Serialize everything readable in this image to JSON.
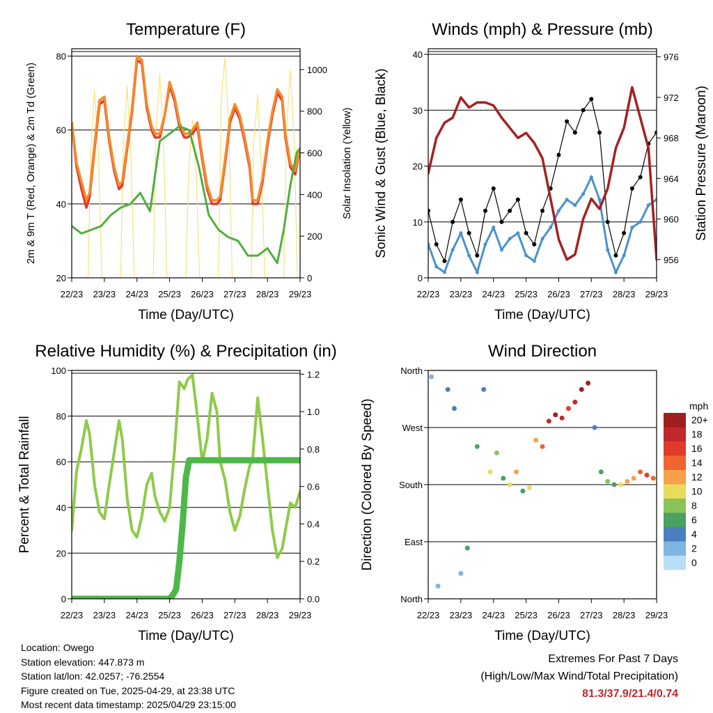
{
  "colors": {
    "t2m": "#e03a2a",
    "t9m": "#f58a2a",
    "td": "#4fae3f",
    "solar": "#f9e27a",
    "gust": "#000000",
    "wind": "#4a90d0",
    "pressure": "#a52020",
    "rh": "#8fca4a",
    "precip": "#4cb848",
    "extremes": "#c0282d"
  },
  "x_tick_labels": [
    "22/23",
    "23/23",
    "24/23",
    "25/23",
    "26/23",
    "27/23",
    "28/23",
    "29/23"
  ],
  "speed_legend": {
    "unit": "mph",
    "labels": [
      "20+",
      "18",
      "16",
      "14",
      "12",
      "10",
      "8",
      "6",
      "4",
      "2",
      "0"
    ],
    "colors": [
      "#9e1f1f",
      "#c0282d",
      "#e03a2a",
      "#f0652e",
      "#f8a14a",
      "#e8dc5a",
      "#8ac35a",
      "#4aa164",
      "#4a7fbe",
      "#7fb6e0",
      "#b8def5"
    ]
  },
  "chart_data": [
    {
      "id": "temperature",
      "type": "line",
      "title": "Temperature (F)",
      "xlabel": "Time (Day/UTC)",
      "ylabel": "2m & 9m T (Red, Orange) & 2m Td (Green)",
      "ylabel_right": "Solar Insolation (Yellow)",
      "xlim": [
        0,
        7
      ],
      "ylim": [
        20,
        82
      ],
      "yticks": [
        20,
        40,
        60,
        80
      ],
      "ylim_right": [
        0,
        1100
      ],
      "yticks_right": [
        0,
        200,
        400,
        600,
        800,
        1000
      ],
      "series": [
        {
          "key": "t2m",
          "x": [
            0,
            0.15,
            0.3,
            0.45,
            0.55,
            0.7,
            0.85,
            1.0,
            1.15,
            1.3,
            1.45,
            1.55,
            1.7,
            1.85,
            2.0,
            2.15,
            2.3,
            2.45,
            2.55,
            2.7,
            2.85,
            3.0,
            3.15,
            3.3,
            3.45,
            3.55,
            3.7,
            3.85,
            4.0,
            4.15,
            4.3,
            4.45,
            4.55,
            4.7,
            4.85,
            5.0,
            5.15,
            5.3,
            5.45,
            5.55,
            5.7,
            5.85,
            6.0,
            6.15,
            6.3,
            6.45,
            6.55,
            6.7,
            6.85,
            7.0
          ],
          "y": [
            62,
            50,
            44,
            39,
            42,
            55,
            67,
            68,
            57,
            49,
            44,
            45,
            55,
            65,
            79,
            78,
            66,
            60,
            58,
            58,
            64,
            72,
            68,
            61,
            58,
            58,
            59,
            61,
            52,
            44,
            40,
            40,
            41,
            51,
            62,
            66,
            63,
            57,
            50,
            40,
            40,
            46,
            56,
            64,
            70,
            68,
            58,
            50,
            48,
            55
          ]
        },
        {
          "key": "t9m",
          "x": [
            0,
            0.15,
            0.3,
            0.45,
            0.55,
            0.7,
            0.85,
            1.0,
            1.15,
            1.3,
            1.45,
            1.55,
            1.7,
            1.85,
            2.0,
            2.15,
            2.3,
            2.45,
            2.55,
            2.7,
            2.85,
            3.0,
            3.15,
            3.3,
            3.45,
            3.55,
            3.7,
            3.85,
            4.0,
            4.15,
            4.3,
            4.45,
            4.55,
            4.7,
            4.85,
            5.0,
            5.15,
            5.3,
            5.45,
            5.55,
            5.7,
            5.85,
            6.0,
            6.15,
            6.3,
            6.45,
            6.55,
            6.7,
            6.85,
            7.0
          ],
          "y": [
            62,
            51,
            46,
            41,
            43,
            56,
            68,
            69,
            58,
            50,
            45,
            46,
            56,
            66,
            80,
            79,
            67,
            61,
            59,
            59,
            64,
            73,
            69,
            62,
            59,
            59,
            60,
            62,
            53,
            45,
            41,
            41,
            42,
            52,
            63,
            67,
            64,
            58,
            51,
            41,
            41,
            47,
            57,
            65,
            71,
            69,
            59,
            51,
            49,
            55
          ]
        },
        {
          "key": "td",
          "x": [
            0,
            0.3,
            0.6,
            0.9,
            1.2,
            1.5,
            1.8,
            2.1,
            2.4,
            2.7,
            3.0,
            3.3,
            3.6,
            3.9,
            4.2,
            4.5,
            4.8,
            5.1,
            5.4,
            5.7,
            6.0,
            6.3,
            6.5,
            6.7,
            6.9,
            7.0
          ],
          "y": [
            34,
            32,
            33,
            34,
            37,
            39,
            40,
            43,
            38,
            57,
            59,
            61,
            60,
            50,
            37,
            33,
            31,
            30,
            26,
            26,
            28,
            24,
            33,
            45,
            54,
            55
          ]
        },
        {
          "key": "solar",
          "x": [
            0,
            0.5,
            0.58,
            0.7,
            0.82,
            0.92,
            1.5,
            1.58,
            1.7,
            1.82,
            1.92,
            2.5,
            2.58,
            2.7,
            2.82,
            2.92,
            3.5,
            3.58,
            3.7,
            3.82,
            3.92,
            4.5,
            4.58,
            4.7,
            4.82,
            4.92,
            5.5,
            5.58,
            5.7,
            5.82,
            5.92,
            6.5,
            6.58,
            6.7,
            6.82,
            6.92,
            7.0
          ],
          "y": [
            0,
            0,
            600,
            900,
            600,
            0,
            0,
            650,
            920,
            550,
            0,
            0,
            700,
            980,
            620,
            0,
            0,
            500,
            760,
            480,
            0,
            0,
            850,
            1060,
            700,
            0,
            0,
            650,
            880,
            500,
            0,
            0,
            700,
            1000,
            650,
            0,
            0
          ],
          "axis": "right"
        }
      ]
    },
    {
      "id": "winds",
      "type": "scatter",
      "title": "Winds (mph) & Pressure (mb)",
      "xlabel": "Time (Day/UTC)",
      "ylabel": "Sonic Wind & Gust (Blue, Black)",
      "ylabel_right": "Station Pressure (Maroon)",
      "xlim": [
        0,
        7
      ],
      "ylim": [
        0,
        41
      ],
      "yticks": [
        0,
        10,
        20,
        30,
        40
      ],
      "ylim_right": [
        954.2,
        976.8
      ],
      "yticks_right": [
        956,
        960,
        964,
        968,
        972,
        976
      ],
      "series": [
        {
          "key": "gust",
          "x": [
            0,
            0.25,
            0.5,
            0.75,
            1.0,
            1.25,
            1.5,
            1.75,
            2.0,
            2.25,
            2.5,
            2.75,
            3.0,
            3.25,
            3.5,
            3.75,
            4.0,
            4.25,
            4.5,
            4.75,
            5.0,
            5.25,
            5.5,
            5.75,
            6.0,
            6.25,
            6.5,
            6.75,
            7.0
          ],
          "y": [
            12,
            6,
            3,
            10,
            14,
            8,
            4,
            12,
            16,
            10,
            12,
            14,
            8,
            6,
            12,
            16,
            22,
            28,
            26,
            30,
            32,
            26,
            10,
            4,
            8,
            16,
            18,
            24,
            26
          ]
        },
        {
          "key": "wind",
          "x": [
            0,
            0.25,
            0.5,
            0.75,
            1.0,
            1.25,
            1.5,
            1.75,
            2.0,
            2.25,
            2.5,
            2.75,
            3.0,
            3.25,
            3.5,
            3.75,
            4.0,
            4.25,
            4.5,
            4.75,
            5.0,
            5.25,
            5.5,
            5.75,
            6.0,
            6.25,
            6.5,
            6.75,
            7.0
          ],
          "y": [
            6,
            2,
            1,
            5,
            8,
            4,
            1,
            6,
            9,
            5,
            7,
            8,
            4,
            3,
            7,
            9,
            12,
            14,
            13,
            15,
            18,
            14,
            5,
            1,
            4,
            9,
            10,
            13,
            14
          ]
        },
        {
          "key": "pressure",
          "x": [
            0,
            0.25,
            0.5,
            0.75,
            1.0,
            1.25,
            1.5,
            1.75,
            2.0,
            2.25,
            2.5,
            2.75,
            3.0,
            3.25,
            3.5,
            3.75,
            4.0,
            4.25,
            4.5,
            4.75,
            5.0,
            5.25,
            5.5,
            5.75,
            6.0,
            6.25,
            6.5,
            6.75,
            7.0
          ],
          "y": [
            964.5,
            968,
            969.5,
            970,
            972,
            971,
            971.5,
            971.5,
            971.2,
            970,
            969,
            968,
            968.5,
            967.5,
            966,
            962,
            958,
            956,
            956.5,
            960,
            962,
            961,
            963,
            967,
            969,
            973,
            970,
            967,
            956
          ],
          "axis": "right"
        }
      ]
    },
    {
      "id": "humidity",
      "type": "line",
      "title": "Relative Humidity (%) & Precipitation (in)",
      "xlabel": "Time (Day/UTC)",
      "ylabel": "Percent & Total Rainfall",
      "xlim": [
        0,
        7
      ],
      "ylim": [
        0,
        100
      ],
      "yticks": [
        0,
        20,
        40,
        60,
        80,
        100
      ],
      "ylim_right": [
        0,
        1.22
      ],
      "yticks_right": [
        0.0,
        0.2,
        0.4,
        0.6,
        0.8,
        1.0,
        1.2
      ],
      "series": [
        {
          "key": "rh",
          "x": [
            0,
            0.15,
            0.3,
            0.45,
            0.55,
            0.7,
            0.85,
            1.0,
            1.15,
            1.3,
            1.45,
            1.55,
            1.7,
            1.85,
            2.0,
            2.15,
            2.3,
            2.45,
            2.55,
            2.7,
            2.85,
            3.0,
            3.15,
            3.3,
            3.45,
            3.55,
            3.7,
            3.85,
            4.0,
            4.15,
            4.3,
            4.45,
            4.55,
            4.7,
            4.85,
            5.0,
            5.15,
            5.3,
            5.45,
            5.55,
            5.7,
            5.85,
            6.0,
            6.15,
            6.3,
            6.45,
            6.55,
            6.7,
            6.85,
            7.0
          ],
          "y": [
            30,
            56,
            66,
            78,
            72,
            50,
            38,
            35,
            50,
            64,
            78,
            70,
            44,
            30,
            27,
            36,
            50,
            55,
            45,
            38,
            34,
            40,
            65,
            95,
            92,
            96,
            98,
            80,
            60,
            70,
            90,
            82,
            60,
            52,
            38,
            30,
            36,
            48,
            58,
            62,
            88,
            70,
            50,
            30,
            18,
            22,
            30,
            42,
            40,
            47
          ]
        },
        {
          "key": "precip",
          "x": [
            0,
            1,
            2,
            3,
            3.1,
            3.2,
            3.3,
            3.4,
            3.5,
            3.6,
            3.7,
            4,
            5,
            6,
            7
          ],
          "y": [
            0,
            0,
            0,
            0,
            0.02,
            0.05,
            0.2,
            0.4,
            0.65,
            0.74,
            0.74,
            0.74,
            0.74,
            0.74,
            0.74
          ],
          "axis": "right"
        }
      ]
    },
    {
      "id": "direction",
      "type": "scatter",
      "title": "Wind Direction",
      "xlabel": "Time (Day/UTC)",
      "ylabel": "Direction (Colored By Speed)",
      "xlim": [
        0,
        7
      ],
      "ylim": [
        0,
        360
      ],
      "ytick_values": [
        0,
        90,
        180,
        270,
        360
      ],
      "ytick_labels": [
        "North",
        "East",
        "South",
        "West",
        "North"
      ],
      "series": [
        {
          "name": "",
          "x": [
            0.1,
            0.3,
            0.6,
            0.8,
            1.0,
            1.2,
            1.5,
            1.7,
            1.9,
            2.1,
            2.3,
            2.5,
            2.7,
            2.9,
            3.1,
            3.3,
            3.5,
            3.7,
            3.9,
            4.1,
            4.3,
            4.5,
            4.7,
            4.9,
            5.1,
            5.3,
            5.5,
            5.7,
            5.9,
            6.1,
            6.3,
            6.5,
            6.7,
            6.9
          ],
          "y": [
            350,
            20,
            330,
            300,
            40,
            80,
            240,
            330,
            200,
            230,
            190,
            180,
            200,
            170,
            175,
            250,
            240,
            280,
            290,
            285,
            300,
            310,
            330,
            340,
            270,
            200,
            185,
            180,
            180,
            185,
            190,
            200,
            195,
            190
          ],
          "speed": [
            2,
            1,
            4,
            3,
            2,
            5,
            6,
            3,
            10,
            8,
            6,
            9,
            11,
            5,
            10,
            12,
            14,
            18,
            19,
            17,
            15,
            18,
            20,
            21,
            4,
            5,
            8,
            6,
            10,
            12,
            12,
            14,
            15,
            14
          ]
        }
      ]
    }
  ],
  "info": {
    "location": "Location: Owego",
    "elevation": "Station elevation: 447.873 m",
    "latlon": "Station lat/lon: 42.0257; -76.2554",
    "created": "Figure created on Tue, 2025-04-29, at 23:38 UTC",
    "recent": "Most recent data timestamp: 2025/04/29 23:15:00"
  },
  "extremes": {
    "title": "Extremes For Past 7 Days",
    "subtitle": "(High/Low/Max Wind/Total Precipitation)",
    "values": "81.3/37.9/21.4/0.74"
  }
}
